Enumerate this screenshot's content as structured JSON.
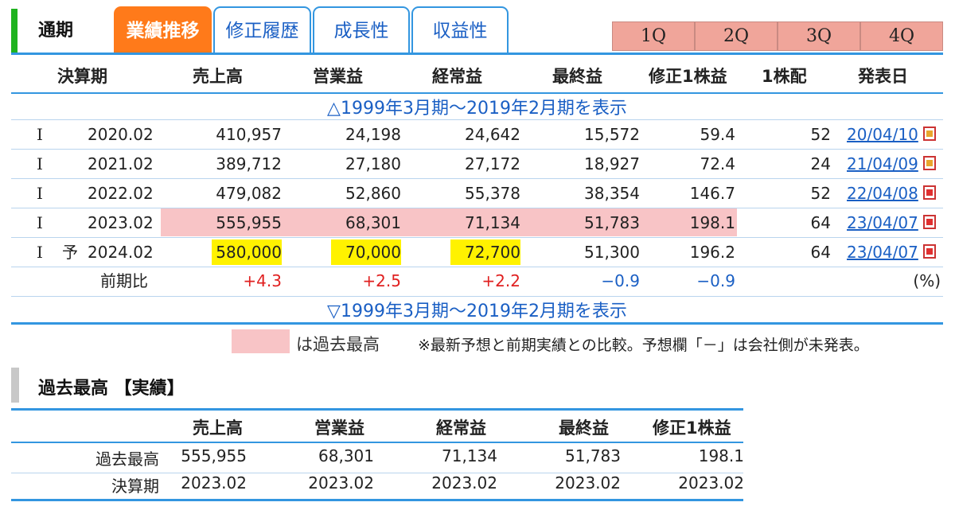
{
  "header": {
    "period_label": "通期",
    "tabs": [
      {
        "label": "業績推移",
        "active": true
      },
      {
        "label": "修正履歴",
        "active": false
      },
      {
        "label": "成長性",
        "active": false
      },
      {
        "label": "収益性",
        "active": false
      }
    ],
    "quarters": [
      "1Q",
      "2Q",
      "3Q",
      "4Q"
    ]
  },
  "table": {
    "columns": [
      "決算期",
      "売上高",
      "営業益",
      "経常益",
      "最終益",
      "修正1株益",
      "1株配",
      "発表日"
    ],
    "toggle_top": "△1999年3月期～2019年2月期を表示",
    "toggle_bottom": "▽1999年3月期～2019年2月期を表示",
    "rows": [
      {
        "type": "I",
        "flag": "",
        "period": "2020.02",
        "sales": "410,957",
        "op": "24,198",
        "ord": "24,642",
        "net": "15,572",
        "eps": "59.4",
        "div": "52",
        "date": "20/04/10",
        "icon": "warning-doc-icon"
      },
      {
        "type": "I",
        "flag": "",
        "period": "2021.02",
        "sales": "389,712",
        "op": "27,180",
        "ord": "27,172",
        "net": "18,927",
        "eps": "72.4",
        "div": "24",
        "date": "21/04/09",
        "icon": "warning-doc-icon"
      },
      {
        "type": "I",
        "flag": "",
        "period": "2022.02",
        "sales": "479,082",
        "op": "52,860",
        "ord": "55,378",
        "net": "38,354",
        "eps": "146.7",
        "div": "52",
        "date": "22/04/08",
        "icon": "pdf-icon"
      },
      {
        "type": "I",
        "flag": "",
        "period": "2023.02",
        "sales": "555,955",
        "op": "68,301",
        "ord": "71,134",
        "net": "51,783",
        "eps": "198.1",
        "div": "64",
        "date": "23/04/07",
        "icon": "pdf-icon"
      },
      {
        "type": "I",
        "flag": "予",
        "period": "2024.02",
        "sales": "580,000",
        "op": "70,000",
        "ord": "72,700",
        "net": "51,300",
        "eps": "196.2",
        "div": "64",
        "date": "23/04/07",
        "icon": "pdf-icon"
      }
    ],
    "yoy": {
      "label": "前期比",
      "sales": "+4.3",
      "op": "+2.5",
      "ord": "+2.2",
      "net": "−0.9",
      "eps": "−0.9",
      "unit": "(%)"
    },
    "legend_text": "は過去最高",
    "note": "※最新予想と前期実績との比較。予想欄「－」は会社側が未発表。",
    "colors": {
      "record_highlight": "#f8c4c6",
      "yellow_highlight": "#fff200",
      "accent": "#3396e0",
      "active_tab": "#ff7a1a"
    }
  },
  "record": {
    "title": "過去最高 【実績】",
    "columns": [
      "売上高",
      "営業益",
      "経常益",
      "最終益",
      "修正1株益"
    ],
    "rows": [
      {
        "label": "過去最高",
        "values": [
          "555,955",
          "68,301",
          "71,134",
          "51,783",
          "198.1"
        ]
      },
      {
        "label": "決算期",
        "values": [
          "2023.02",
          "2023.02",
          "2023.02",
          "2023.02",
          "2023.02"
        ]
      }
    ]
  }
}
